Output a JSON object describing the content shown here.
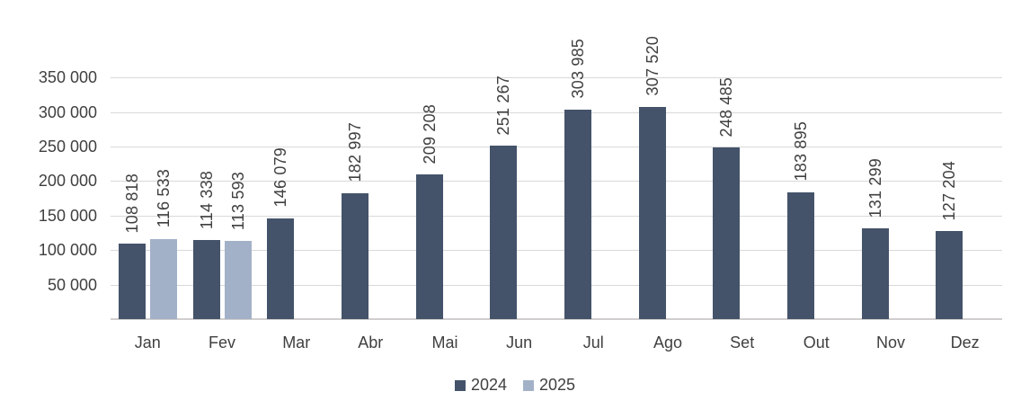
{
  "chart_data": {
    "type": "bar",
    "categories": [
      "Jan",
      "Fev",
      "Mar",
      "Abr",
      "Mai",
      "Jun",
      "Jul",
      "Ago",
      "Set",
      "Out",
      "Nov",
      "Dez"
    ],
    "series": [
      {
        "name": "2024",
        "color": "#44536A",
        "values": [
          108818,
          114338,
          146079,
          182997,
          209208,
          251267,
          303985,
          307520,
          248485,
          183895,
          131299,
          127204
        ],
        "labels": [
          "108 818",
          "114 338",
          "146 079",
          "182 997",
          "209 208",
          "251 267",
          "303 985",
          "307 520",
          "248 485",
          "183 895",
          "131 299",
          "127 204"
        ]
      },
      {
        "name": "2025",
        "color": "#A3B1C8",
        "values": [
          116533,
          113593,
          null,
          null,
          null,
          null,
          null,
          null,
          null,
          null,
          null,
          null
        ],
        "labels": [
          "116 533",
          "113 593",
          null,
          null,
          null,
          null,
          null,
          null,
          null,
          null,
          null,
          null
        ]
      }
    ],
    "y_axis": {
      "min": 0,
      "max": 350000,
      "step": 50000,
      "tick_labels": [
        "50 000",
        "100 000",
        "150 000",
        "200 000",
        "250 000",
        "300 000",
        "350 000"
      ]
    },
    "legend": {
      "position": "bottom-center",
      "entries": [
        {
          "label": "2024",
          "color": "#44536A"
        },
        {
          "label": "2025",
          "color": "#A3B1C8"
        }
      ]
    },
    "grid": true,
    "colors": {
      "gridline": "#d9d9d9",
      "axis_line": "#d0cece",
      "text": "#404040"
    }
  }
}
